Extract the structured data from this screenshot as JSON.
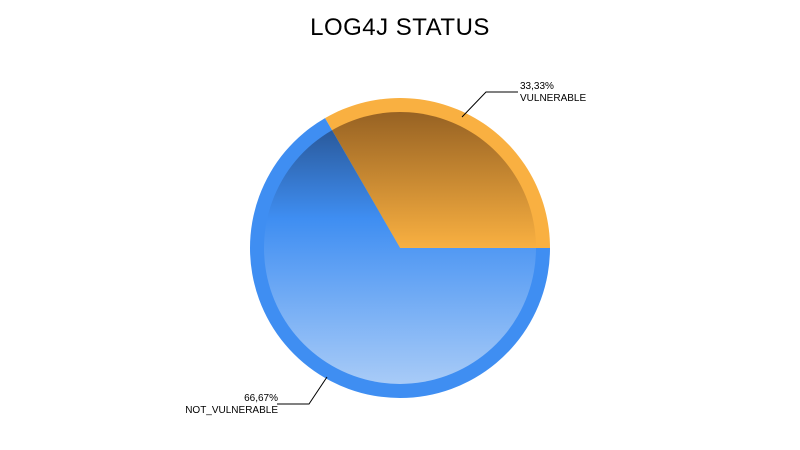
{
  "chart_data": {
    "type": "pie",
    "title": "LOG4J STATUS",
    "slices": [
      {
        "label": "VULNERABLE",
        "value": 33.33,
        "pct_text": "33,33%",
        "color": "#F9B041"
      },
      {
        "label": "NOT_VULNERABLE",
        "value": 66.67,
        "pct_text": "66,67%",
        "color": "#3F8EF2"
      }
    ],
    "legend": "none",
    "start_angle_deg": 0,
    "direction": "counterclockwise"
  }
}
